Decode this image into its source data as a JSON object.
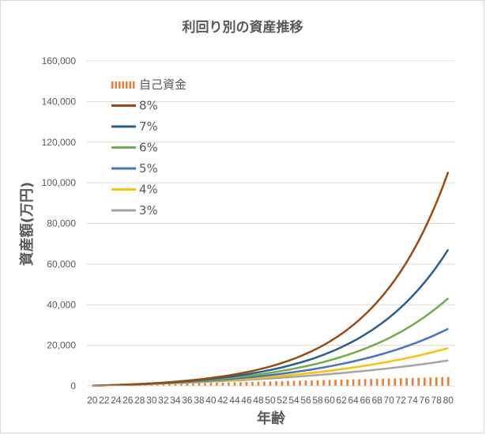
{
  "chart_data": {
    "type": "line",
    "title": "利回り別の資産推移",
    "xlabel": "年齢",
    "ylabel": "資産額(万円)",
    "ylim": [
      0,
      160000
    ],
    "yticks": [
      "0",
      "20,000",
      "40,000",
      "60,000",
      "80,000",
      "100,000",
      "120,000",
      "140,000",
      "160,000"
    ],
    "grid": true,
    "legend_position": "top-left",
    "x": [
      20,
      21,
      22,
      23,
      24,
      25,
      26,
      27,
      28,
      29,
      30,
      31,
      32,
      33,
      34,
      35,
      36,
      37,
      38,
      39,
      40,
      41,
      42,
      43,
      44,
      45,
      46,
      47,
      48,
      49,
      50,
      51,
      52,
      53,
      54,
      55,
      56,
      57,
      58,
      59,
      60,
      61,
      62,
      63,
      64,
      65,
      66,
      67,
      68,
      69,
      70,
      71,
      72,
      73,
      74,
      75,
      76,
      77,
      78,
      79,
      80
    ],
    "xtick_labels": [
      "20",
      "22",
      "24",
      "26",
      "28",
      "30",
      "32",
      "34",
      "36",
      "38",
      "40",
      "42",
      "44",
      "46",
      "48",
      "50",
      "52",
      "54",
      "56",
      "58",
      "60",
      "62",
      "64",
      "66",
      "68",
      "70",
      "72",
      "74",
      "76",
      "78",
      "80"
    ],
    "series": [
      {
        "name": "自己資金",
        "kind": "bar",
        "color": "#ED7D31",
        "values": [
          72,
          144,
          216,
          288,
          360,
          432,
          504,
          576,
          648,
          720,
          792,
          864,
          936,
          1008,
          1080,
          1152,
          1224,
          1296,
          1368,
          1440,
          1512,
          1584,
          1656,
          1728,
          1800,
          1872,
          1944,
          2016,
          2088,
          2160,
          2232,
          2304,
          2376,
          2448,
          2520,
          2592,
          2664,
          2736,
          2808,
          2880,
          2952,
          3024,
          3096,
          3168,
          3240,
          3312,
          3384,
          3456,
          3528,
          3600,
          3672,
          3744,
          3816,
          3888,
          3960,
          4032,
          4104,
          4176,
          4248,
          4320,
          4392
        ]
      },
      {
        "name": "8%",
        "kind": "line",
        "color": "#9E480E",
        "rate": 0.08
      },
      {
        "name": "7%",
        "kind": "line",
        "color": "#255E91",
        "rate": 0.07
      },
      {
        "name": "6%",
        "kind": "line",
        "color": "#70AD47",
        "rate": 0.06
      },
      {
        "name": "5%",
        "kind": "line",
        "color": "#4472C4",
        "rate": 0.05
      },
      {
        "name": "4%",
        "kind": "line",
        "color": "#FFC000",
        "rate": 0.04
      },
      {
        "name": "3%",
        "kind": "line",
        "color": "#A5A5A5",
        "rate": 0.03
      }
    ],
    "annual_contribution": 72
  }
}
